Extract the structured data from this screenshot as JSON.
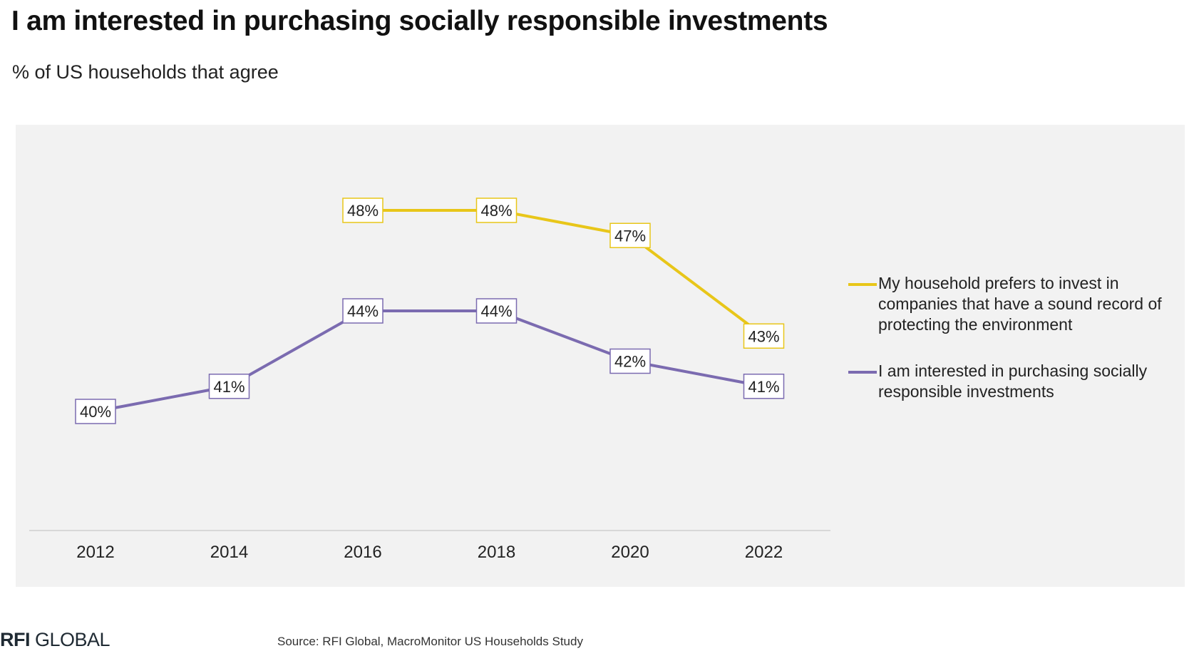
{
  "page": {
    "title": "I am interested in purchasing socially responsible investments",
    "subtitle": "% of US households that agree",
    "source": "Source: RFI Global, MacroMonitor US Households Study",
    "logo_part1": "RFI",
    "logo_part2": "GLOBAL"
  },
  "chart_data": {
    "type": "line",
    "title": "I am interested in purchasing socially responsible investments",
    "subtitle": "% of US households that agree",
    "xlabel": "",
    "ylabel": "",
    "x": [
      "2012",
      "2014",
      "2016",
      "2018",
      "2020",
      "2022"
    ],
    "ylim": [
      30,
      55
    ],
    "grid": false,
    "legend_position": "right",
    "series": [
      {
        "name": "My household prefers to invest in companies that have a sound record of protecting the environment",
        "color": "#e8c619",
        "values": [
          null,
          null,
          48,
          48,
          47,
          43
        ],
        "labels": [
          null,
          null,
          "48%",
          "48%",
          "47%",
          "43%"
        ]
      },
      {
        "name": "I am interested in purchasing socially responsible investments",
        "color": "#7b6bb0",
        "values": [
          40,
          41,
          44,
          44,
          42,
          41
        ],
        "labels": [
          "40%",
          "41%",
          "44%",
          "44%",
          "42%",
          "41%"
        ]
      }
    ]
  }
}
